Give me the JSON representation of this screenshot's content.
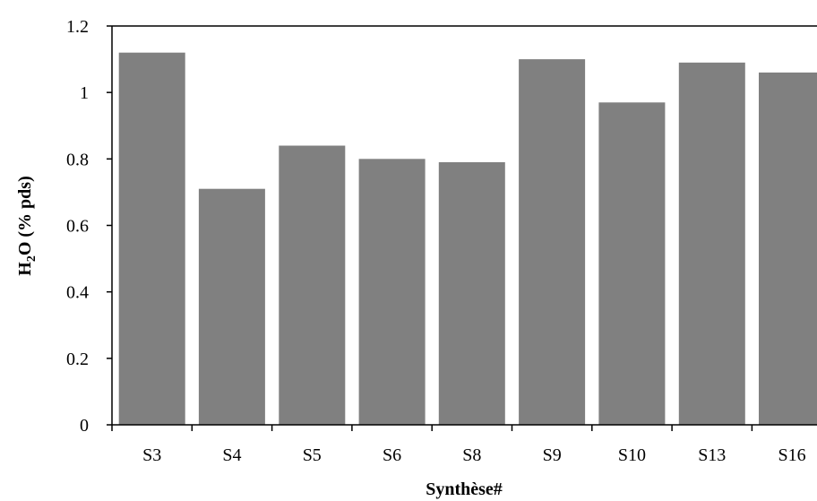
{
  "chart_data": {
    "type": "bar",
    "categories": [
      "S3",
      "S4",
      "S5",
      "S6",
      "S8",
      "S9",
      "S10",
      "S13",
      "S16"
    ],
    "values": [
      1.12,
      0.71,
      0.84,
      0.8,
      0.79,
      1.1,
      0.97,
      1.09,
      1.06
    ],
    "xlabel": "Synthèse#",
    "ylabel": {
      "prefix": "H",
      "subscript": "2",
      "suffix": "O (% pds)"
    },
    "ylim": [
      0,
      1.2
    ],
    "yticks": [
      "0",
      "0.2",
      "0.4",
      "0.6",
      "0.8",
      "1",
      "1.2"
    ],
    "bar_color": "#808080",
    "grid": false,
    "legend": "none"
  }
}
